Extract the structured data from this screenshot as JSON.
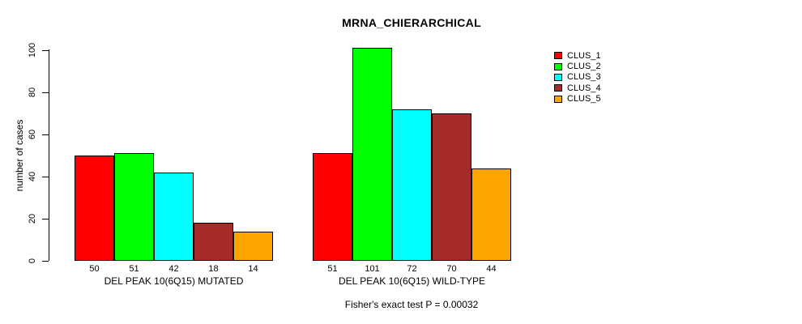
{
  "title": "MRNA_CHIERARCHICAL",
  "footer": "Fisher's exact test P = 0.00032",
  "chart_data": {
    "type": "bar",
    "title": "MRNA_CHIERARCHICAL",
    "xlabel": "",
    "ylabel": "number of cases",
    "ylim": [
      0,
      105
    ],
    "yticks": [
      0,
      20,
      40,
      60,
      80,
      100
    ],
    "grid": false,
    "legend_position": "top-right",
    "bar_value_labels_shown": true,
    "categories": [
      "DEL PEAK 10(6Q15) MUTATED",
      "DEL PEAK 10(6Q15) WILD-TYPE"
    ],
    "series": [
      {
        "name": "CLUS_1",
        "color": "#ff0000",
        "values": [
          50,
          51
        ]
      },
      {
        "name": "CLUS_2",
        "color": "#00ff00",
        "values": [
          51,
          101
        ]
      },
      {
        "name": "CLUS_3",
        "color": "#00ffff",
        "values": [
          42,
          72
        ]
      },
      {
        "name": "CLUS_4",
        "color": "#a52a2a",
        "values": [
          18,
          70
        ]
      },
      {
        "name": "CLUS_5",
        "color": "#ffa500",
        "values": [
          14,
          44
        ]
      }
    ],
    "annotation": "Fisher's exact test P = 0.00032"
  }
}
